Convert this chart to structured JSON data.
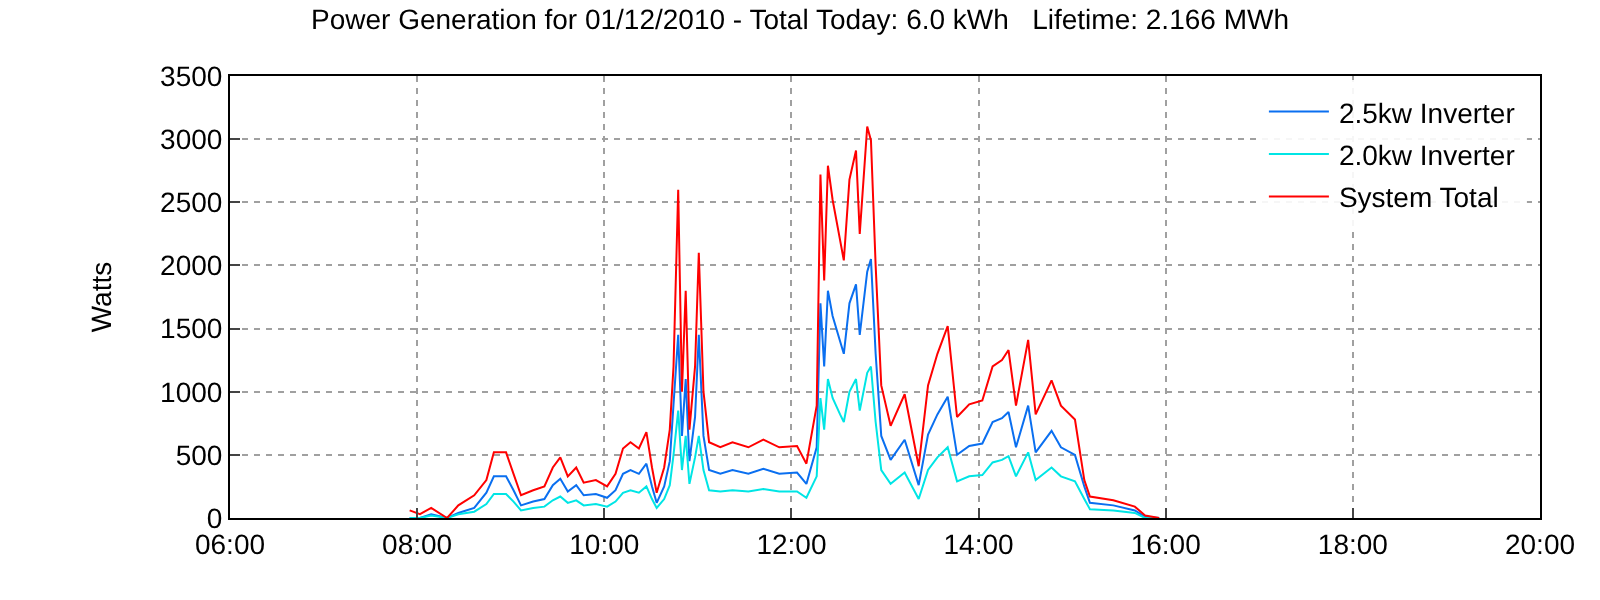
{
  "chart_data": {
    "type": "line",
    "title": "Power Generation for 01/12/2010 - Total Today: 6.0 kWh   Lifetime: 2.166 MWh",
    "ylabel": "Watts",
    "x": [
      7.92,
      8.03,
      8.15,
      8.32,
      8.44,
      8.61,
      8.74,
      8.82,
      8.95,
      9.03,
      9.11,
      9.24,
      9.36,
      9.45,
      9.53,
      9.61,
      9.7,
      9.78,
      9.91,
      10.03,
      10.12,
      10.2,
      10.28,
      10.37,
      10.45,
      10.51,
      10.56,
      10.64,
      10.7,
      10.74,
      10.79,
      10.83,
      10.87,
      10.91,
      10.97,
      11.01,
      11.06,
      11.12,
      11.24,
      11.37,
      11.54,
      11.7,
      11.87,
      12.06,
      12.16,
      12.27,
      12.31,
      12.35,
      12.39,
      12.44,
      12.52,
      12.56,
      12.62,
      12.69,
      12.73,
      12.81,
      12.85,
      12.9,
      12.96,
      13.06,
      13.21,
      13.36,
      13.46,
      13.56,
      13.67,
      13.77,
      13.9,
      14.04,
      14.15,
      14.25,
      14.32,
      14.4,
      14.53,
      14.61,
      14.78,
      14.88,
      15.03,
      15.13,
      15.19,
      15.44,
      15.67,
      15.78,
      15.93
    ],
    "series": [
      {
        "name": "2.5kw Inverter",
        "color": "#0a6ff0",
        "values": [
          0,
          0,
          30,
          0,
          40,
          80,
          200,
          330,
          330,
          220,
          100,
          130,
          150,
          260,
          310,
          210,
          260,
          180,
          190,
          160,
          220,
          350,
          380,
          350,
          430,
          250,
          120,
          250,
          450,
          900,
          1450,
          650,
          1100,
          450,
          800,
          1450,
          650,
          380,
          350,
          380,
          350,
          390,
          350,
          360,
          270,
          560,
          1700,
          1200,
          1800,
          1600,
          1400,
          1300,
          1700,
          1850,
          1450,
          1950,
          2050,
          1300,
          650,
          460,
          620,
          260,
          660,
          820,
          960,
          500,
          570,
          590,
          760,
          790,
          840,
          560,
          890,
          520,
          690,
          560,
          500,
          250,
          120,
          100,
          60,
          10,
          0
        ]
      },
      {
        "name": "2.0kw Inverter",
        "color": "#00e5e5",
        "values": [
          0,
          0,
          20,
          0,
          30,
          50,
          110,
          190,
          190,
          130,
          60,
          80,
          90,
          140,
          170,
          120,
          140,
          100,
          110,
          90,
          130,
          200,
          220,
          200,
          250,
          150,
          80,
          150,
          260,
          500,
          850,
          380,
          650,
          270,
          480,
          650,
          380,
          220,
          210,
          220,
          210,
          230,
          210,
          210,
          160,
          330,
          950,
          700,
          1100,
          950,
          820,
          760,
          1000,
          1100,
          850,
          1150,
          1200,
          760,
          380,
          270,
          360,
          150,
          380,
          480,
          560,
          290,
          330,
          340,
          440,
          460,
          490,
          330,
          520,
          300,
          400,
          330,
          290,
          150,
          70,
          60,
          40,
          0,
          0
        ]
      },
      {
        "name": "System Total",
        "color": "#ff0000",
        "values": [
          60,
          30,
          80,
          0,
          100,
          180,
          300,
          520,
          520,
          350,
          180,
          220,
          250,
          400,
          480,
          330,
          400,
          280,
          300,
          250,
          350,
          550,
          600,
          550,
          680,
          400,
          200,
          400,
          700,
          1200,
          2600,
          1000,
          1800,
          700,
          1200,
          2100,
          1000,
          600,
          560,
          600,
          560,
          620,
          560,
          570,
          430,
          890,
          2720,
          1880,
          2790,
          2520,
          2200,
          2040,
          2680,
          2910,
          2250,
          3100,
          2990,
          2000,
          1050,
          730,
          980,
          410,
          1050,
          1300,
          1520,
          800,
          900,
          930,
          1200,
          1250,
          1330,
          890,
          1410,
          820,
          1090,
          890,
          780,
          300,
          170,
          140,
          90,
          20,
          0
        ]
      }
    ],
    "xlim": [
      6,
      20
    ],
    "xticks": [
      {
        "value": 6,
        "label": "06:00"
      },
      {
        "value": 8,
        "label": "08:00"
      },
      {
        "value": 10,
        "label": "10:00"
      },
      {
        "value": 12,
        "label": "12:00"
      },
      {
        "value": 14,
        "label": "14:00"
      },
      {
        "value": 16,
        "label": "16:00"
      },
      {
        "value": 18,
        "label": "18:00"
      },
      {
        "value": 20,
        "label": "20:00"
      }
    ],
    "ylim": [
      0,
      3500
    ],
    "yticks": [
      0,
      500,
      1000,
      1500,
      2000,
      2500,
      3000,
      3500
    ],
    "grid": true,
    "legend": "top right",
    "marker": "none",
    "line_style": "solid"
  }
}
